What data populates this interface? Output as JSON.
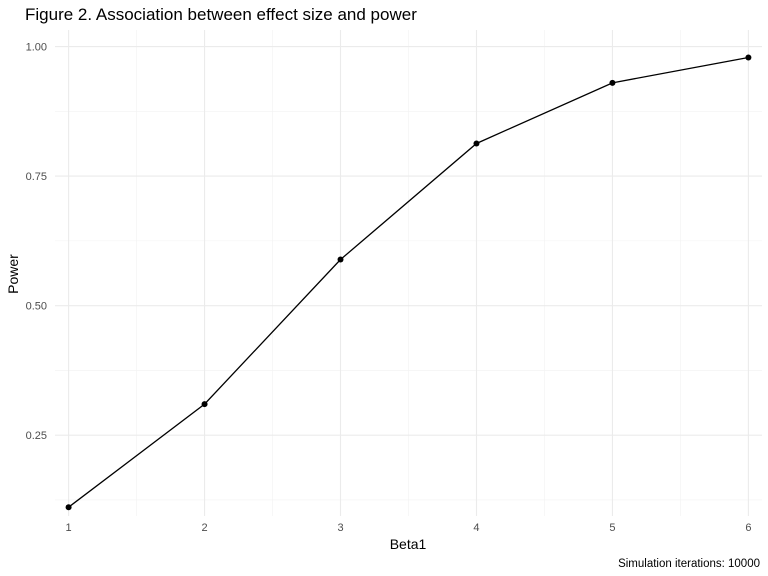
{
  "chart_data": {
    "type": "line",
    "title": "Figure 2. Association between effect size and power",
    "xlabel": "Beta1",
    "ylabel": "Power",
    "caption": "Simulation iterations: 10000",
    "x": [
      1,
      2,
      3,
      4,
      5,
      6
    ],
    "series": [
      {
        "values": [
          0.111,
          0.31,
          0.589,
          0.813,
          0.93,
          0.979
        ]
      }
    ],
    "xlim": [
      0.9,
      6.1
    ],
    "ylim": [
      0.094,
      1.032
    ],
    "x_ticks": [
      1,
      2,
      3,
      4,
      5,
      6
    ],
    "x_tick_labels": [
      "1",
      "2",
      "3",
      "4",
      "5",
      "6"
    ],
    "y_ticks": [
      0.25,
      0.5,
      0.75,
      1.0
    ],
    "y_tick_labels": [
      "0.25",
      "0.50",
      "0.75",
      "1.00"
    ],
    "grid": true,
    "legend": "none",
    "line_color": "#000000",
    "grid_color": "#ebebeb"
  }
}
